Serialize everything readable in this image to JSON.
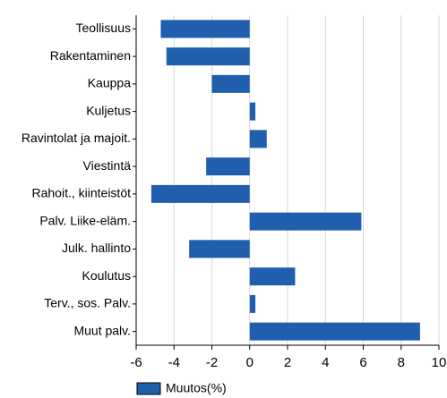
{
  "chart_data": {
    "type": "barh",
    "categories": [
      "Teollisuus",
      "Rakentaminen",
      "Kauppa",
      "Kuljetus",
      "Ravintolat ja majoit.",
      "Viestintä",
      "Rahoit., kiinteistöt",
      "Palv. Liike-eläm.",
      "Julk. hallinto",
      "Koulutus",
      "Terv., sos. Palv.",
      "Muut palv."
    ],
    "series": [
      {
        "name": "Muutos(%)",
        "color": "#1f5fad",
        "values": [
          -4.7,
          -4.4,
          -2.0,
          0.3,
          0.9,
          -2.3,
          -5.2,
          5.9,
          -3.2,
          2.4,
          0.3,
          9.0
        ]
      }
    ],
    "xlim": [
      -6,
      10
    ],
    "xticks": [
      -6,
      -4,
      -2,
      0,
      2,
      4,
      6,
      8,
      10
    ],
    "grid": true,
    "legend": "bottom"
  }
}
